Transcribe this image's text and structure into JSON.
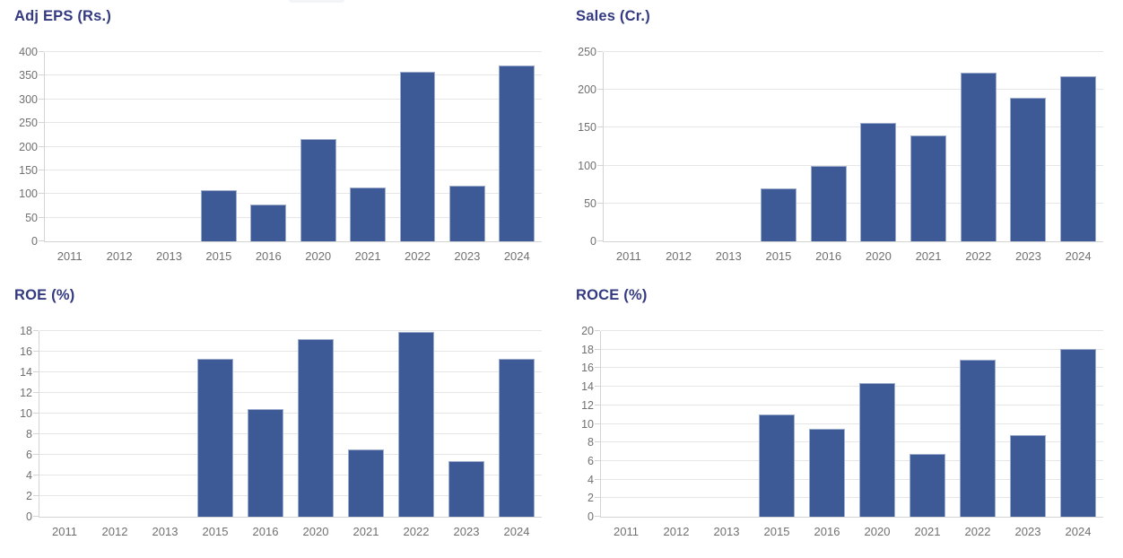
{
  "theme": {
    "bar_color": "#3d5a97",
    "bar_border_color": "rgba(255,255,255,0.5)",
    "title_color": "#343a80",
    "axis_label_color": "#707070",
    "grid_color": "#e6e6e6",
    "axis_line_color": "#d4d4d4",
    "background": "#ffffff"
  },
  "chart_data": [
    {
      "type": "bar",
      "title": "Adj EPS (Rs.)",
      "categories": [
        "2011",
        "2012",
        "2013",
        "2015",
        "2016",
        "2020",
        "2021",
        "2022",
        "2023",
        "2024"
      ],
      "values": [
        0,
        0,
        0,
        108,
        78,
        216,
        114,
        358,
        118,
        371
      ],
      "xlabel": "",
      "ylabel": "",
      "ylim": [
        0,
        400
      ],
      "ytick_step": 50,
      "grid": true,
      "legend": "none"
    },
    {
      "type": "bar",
      "title": "Sales (Cr.)",
      "categories": [
        "2011",
        "2012",
        "2013",
        "2015",
        "2016",
        "2020",
        "2021",
        "2022",
        "2023",
        "2024"
      ],
      "values": [
        0,
        0,
        0,
        70,
        99,
        157,
        140,
        223,
        190,
        218
      ],
      "xlabel": "",
      "ylabel": "",
      "ylim": [
        0,
        250
      ],
      "ytick_step": 50,
      "grid": true,
      "legend": "none"
    },
    {
      "type": "bar",
      "title": "ROE (%)",
      "categories": [
        "2011",
        "2012",
        "2013",
        "2015",
        "2016",
        "2020",
        "2021",
        "2022",
        "2023",
        "2024"
      ],
      "values": [
        0,
        0,
        0,
        15.3,
        10.4,
        17.2,
        6.5,
        17.9,
        5.4,
        15.3
      ],
      "xlabel": "",
      "ylabel": "",
      "ylim": [
        0,
        18
      ],
      "ytick_step": 2,
      "grid": true,
      "legend": "none"
    },
    {
      "type": "bar",
      "title": "ROCE (%)",
      "categories": [
        "2011",
        "2012",
        "2013",
        "2015",
        "2016",
        "2020",
        "2021",
        "2022",
        "2023",
        "2024"
      ],
      "values": [
        0,
        0,
        0,
        11.0,
        9.5,
        14.4,
        6.8,
        16.9,
        8.8,
        18.1
      ],
      "xlabel": "",
      "ylabel": "",
      "ylim": [
        0,
        20
      ],
      "ytick_step": 2,
      "grid": true,
      "legend": "none"
    }
  ]
}
